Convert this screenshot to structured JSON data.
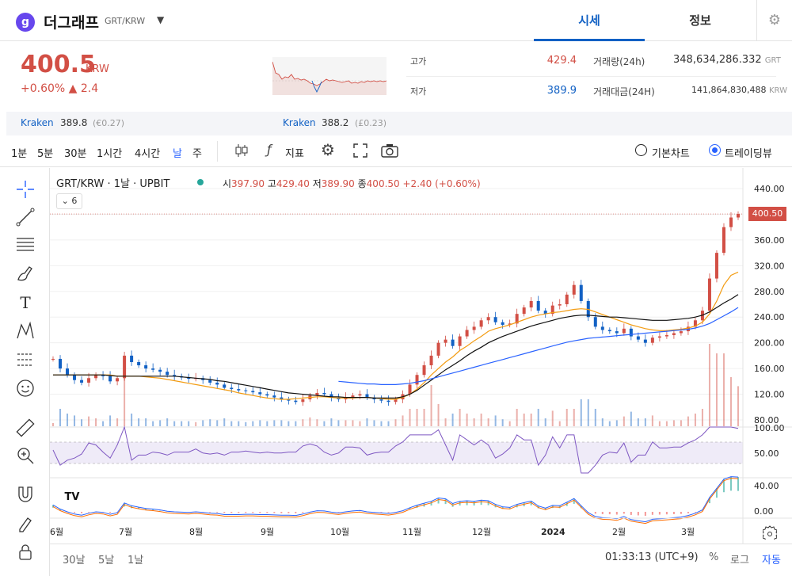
{
  "header": {
    "logo_glyph": "g",
    "coin_name": "더그래프",
    "pair": "GRT/KRW",
    "tabs": [
      "시세",
      "정보"
    ]
  },
  "summary": {
    "price": "400.5",
    "price_unit": "KRW",
    "change_pct": "+0.60%",
    "change_abs": "▲ 2.4",
    "high_label": "고가",
    "high_value": "429.4",
    "low_label": "저가",
    "low_value": "389.9",
    "volume_label": "거래량(24h)",
    "volume_value": "348,634,286.332",
    "volume_unit": "GRT",
    "amount_label": "거래대금(24H)",
    "amount_value": "141,864,830,488",
    "amount_unit": "KRW"
  },
  "exchanges": [
    {
      "name": "Kraken",
      "value": "389.8",
      "sub": "(€0.27)"
    },
    {
      "name": "Kraken",
      "value": "388.2",
      "sub": "(£0.23)"
    }
  ],
  "toolbar": {
    "timeframes": [
      "1분",
      "5분",
      "30분",
      "1시간",
      "4시간",
      "날",
      "주"
    ],
    "selected_timeframe": "날",
    "indicators_label": "지표",
    "chart_modes": [
      "기본차트",
      "트레이딩뷰"
    ],
    "selected_mode": "트레이딩뷰"
  },
  "legend": {
    "title": "GRT/KRW · 1날 · UPBIT",
    "open_label": "시",
    "open": "397.90",
    "high_label": "고",
    "high": "429.40",
    "low_label": "저",
    "low": "389.90",
    "close_label": "종",
    "close": "400.50",
    "change": "+2.40 (+0.60%)",
    "ma_count": "6",
    "last_price_tag": "400.50"
  },
  "bottom": {
    "ranges": [
      "30날",
      "5날",
      "1날"
    ],
    "time": "01:33:13 (UTC+9)",
    "pct": "%",
    "log": "로그",
    "auto": "자동"
  },
  "colors": {
    "up": "#d24f45",
    "down": "#1261c4",
    "accent": "#2962ff"
  },
  "chart_data": {
    "type": "line",
    "title": "GRT/KRW · 1날 · UPBIT",
    "x_ticks": [
      "6월",
      "7월",
      "8월",
      "9월",
      "10월",
      "11월",
      "12월",
      "2024",
      "2월",
      "3월"
    ],
    "y_ticks": [
      "440.00",
      "400.00",
      "360.00",
      "320.00",
      "280.00",
      "240.00",
      "200.00",
      "160.00",
      "120.00",
      "80.00"
    ],
    "ylim": [
      80,
      440
    ],
    "rsi_ticks": [
      "100.00",
      "50.00"
    ],
    "macd_ticks": [
      "40.00",
      "0.00"
    ],
    "close_series": [
      175,
      160,
      150,
      142,
      138,
      145,
      150,
      148,
      140,
      145,
      180,
      170,
      165,
      160,
      158,
      155,
      150,
      148,
      146,
      144,
      145,
      142,
      138,
      135,
      130,
      128,
      126,
      125,
      123,
      120,
      118,
      115,
      112,
      110,
      108,
      112,
      118,
      122,
      120,
      115,
      112,
      115,
      118,
      120,
      115,
      112,
      110,
      108,
      112,
      120,
      135,
      150,
      165,
      180,
      200,
      205,
      195,
      210,
      220,
      225,
      235,
      240,
      232,
      228,
      230,
      245,
      255,
      265,
      250,
      245,
      258,
      260,
      275,
      290,
      265,
      240,
      225,
      220,
      218,
      215,
      222,
      210,
      205,
      200,
      208,
      210,
      212,
      215,
      218,
      225,
      235,
      250,
      300,
      340,
      380,
      395,
      400.5
    ],
    "series": [
      {
        "values": [
          150,
          150,
          150,
          150,
          150,
          150,
          150,
          150,
          150,
          148,
          148,
          148,
          148,
          147,
          146,
          145,
          143,
          141,
          139,
          137,
          135,
          133,
          131,
          129,
          127,
          125,
          122,
          120,
          118,
          116,
          114,
          113,
          112,
          112,
          113,
          114,
          115,
          116,
          116,
          115,
          114,
          114,
          114,
          115,
          115,
          114,
          113,
          112,
          112,
          115,
          120,
          128,
          138,
          150,
          160,
          170,
          178,
          188,
          195,
          203,
          210,
          218,
          222,
          225,
          228,
          232,
          236,
          240,
          243,
          245,
          247,
          248,
          250,
          252,
          253,
          252,
          248,
          244,
          240,
          236,
          232,
          228,
          225,
          222,
          220,
          219,
          219,
          220,
          221,
          223,
          226,
          232,
          245,
          265,
          290,
          305,
          310
        ]
      },
      {
        "values": [
          150,
          150,
          150,
          150,
          150,
          150,
          150,
          150,
          149,
          148,
          148,
          148,
          148,
          148,
          148,
          148,
          148,
          148,
          147,
          146,
          145,
          144,
          143,
          141,
          140,
          138,
          136,
          134,
          132,
          130,
          128,
          126,
          124,
          122,
          121,
          120,
          119,
          118,
          117,
          116,
          116,
          115,
          115,
          115,
          115,
          114,
          114,
          114,
          114,
          116,
          120,
          126,
          134,
          142,
          150,
          158,
          165,
          172,
          180,
          187,
          193,
          200,
          205,
          210,
          214,
          218,
          222,
          226,
          229,
          232,
          235,
          238,
          240,
          242,
          243,
          243,
          242,
          241,
          240,
          240,
          239,
          238,
          237,
          236,
          235,
          235,
          235,
          236,
          237,
          238,
          240,
          243,
          248,
          255,
          262,
          268,
          275
        ]
      },
      {
        "values": [
          null,
          null,
          null,
          null,
          null,
          null,
          null,
          null,
          null,
          null,
          null,
          null,
          null,
          null,
          null,
          null,
          null,
          null,
          null,
          null,
          null,
          null,
          null,
          null,
          null,
          null,
          null,
          null,
          null,
          null,
          null,
          null,
          null,
          null,
          null,
          null,
          null,
          null,
          null,
          null,
          140,
          139,
          138,
          137,
          136,
          136,
          135,
          135,
          135,
          136,
          137,
          139,
          141,
          144,
          147,
          150,
          153,
          156,
          159,
          162,
          165,
          168,
          171,
          174,
          177,
          180,
          183,
          186,
          189,
          192,
          195,
          198,
          201,
          203,
          205,
          207,
          208,
          209,
          210,
          211,
          212,
          213,
          214,
          215,
          216,
          217,
          218,
          219,
          220,
          221,
          223,
          226,
          230,
          236,
          242,
          248,
          255
        ]
      }
    ]
  }
}
